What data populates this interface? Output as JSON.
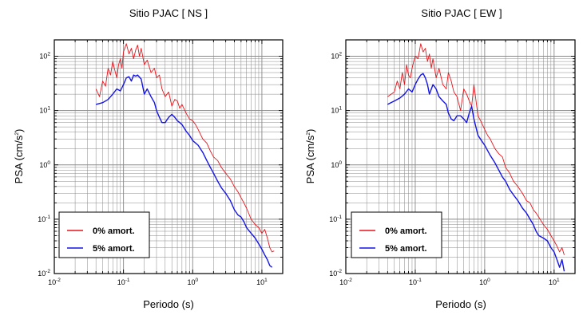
{
  "figure": {
    "background": "#ffffff",
    "grid_color": "#888888"
  },
  "chart_data": [
    {
      "type": "line",
      "title": "Sitio PJAC [ NS ]",
      "xlabel": "Periodo (s)",
      "ylabel_main": "PSA (cm/s",
      "ylabel_exp": "2",
      "ylabel_close": ")",
      "xscale": "log",
      "yscale": "log",
      "xlim": [
        0.01,
        20
      ],
      "ylim": [
        0.01,
        200
      ],
      "grid": true,
      "legend_position": "lower-left",
      "series": [
        {
          "name": "0% amort.",
          "color": "#e8151b",
          "x": [
            0.04,
            0.045,
            0.05,
            0.055,
            0.06,
            0.065,
            0.07,
            0.075,
            0.08,
            0.085,
            0.09,
            0.095,
            0.1,
            0.11,
            0.12,
            0.13,
            0.14,
            0.15,
            0.16,
            0.17,
            0.18,
            0.2,
            0.22,
            0.25,
            0.28,
            0.3,
            0.33,
            0.36,
            0.4,
            0.45,
            0.5,
            0.55,
            0.6,
            0.65,
            0.7,
            0.8,
            0.9,
            1.0,
            1.1,
            1.2,
            1.4,
            1.6,
            1.8,
            2.0,
            2.3,
            2.6,
            3.0,
            3.5,
            4.0,
            4.5,
            5.0,
            5.5,
            6.0,
            7.0,
            8.0,
            9.0,
            10,
            11,
            12,
            13,
            14,
            15
          ],
          "y": [
            25,
            18,
            35,
            28,
            60,
            45,
            80,
            55,
            40,
            70,
            90,
            60,
            120,
            170,
            110,
            140,
            90,
            130,
            160,
            100,
            140,
            70,
            85,
            50,
            60,
            40,
            45,
            25,
            18,
            22,
            12,
            16,
            15,
            11,
            13,
            9,
            7,
            6.5,
            5.5,
            4.5,
            3,
            2.5,
            1.8,
            1.4,
            1.2,
            0.9,
            0.7,
            0.55,
            0.4,
            0.32,
            0.25,
            0.2,
            0.16,
            0.1,
            0.08,
            0.07,
            0.055,
            0.065,
            0.045,
            0.03,
            0.025,
            0.026
          ]
        },
        {
          "name": "5% amort.",
          "color": "#1414e6",
          "x": [
            0.04,
            0.05,
            0.06,
            0.07,
            0.08,
            0.09,
            0.1,
            0.11,
            0.12,
            0.13,
            0.14,
            0.15,
            0.16,
            0.18,
            0.2,
            0.22,
            0.25,
            0.28,
            0.3,
            0.33,
            0.36,
            0.4,
            0.45,
            0.5,
            0.55,
            0.6,
            0.65,
            0.7,
            0.8,
            0.9,
            1.0,
            1.2,
            1.4,
            1.6,
            1.8,
            2.0,
            2.3,
            2.6,
            3.0,
            3.5,
            4.0,
            4.5,
            5.0,
            5.5,
            6.0,
            7.0,
            8.0,
            9.0,
            10,
            11,
            12,
            13,
            14
          ],
          "y": [
            13,
            14,
            16,
            20,
            25,
            23,
            30,
            40,
            42,
            35,
            45,
            43,
            45,
            38,
            20,
            25,
            18,
            14,
            10,
            7.5,
            6,
            6,
            7.5,
            8.5,
            7.5,
            6.5,
            6,
            5.5,
            4.2,
            3.5,
            2.8,
            2.3,
            1.7,
            1.2,
            0.9,
            0.7,
            0.5,
            0.38,
            0.3,
            0.22,
            0.15,
            0.12,
            0.11,
            0.09,
            0.07,
            0.055,
            0.045,
            0.035,
            0.028,
            0.022,
            0.018,
            0.014,
            0.013
          ]
        }
      ]
    },
    {
      "type": "line",
      "title": "Sitio PJAC [ EW ]",
      "xlabel": "Periodo (s)",
      "ylabel_main": "PSA (cm/s",
      "ylabel_exp": "2",
      "ylabel_close": ")",
      "xscale": "log",
      "yscale": "log",
      "xlim": [
        0.01,
        20
      ],
      "ylim": [
        0.01,
        200
      ],
      "grid": true,
      "legend_position": "lower-left",
      "series": [
        {
          "name": "0% amort.",
          "color": "#e8151b",
          "x": [
            0.04,
            0.045,
            0.05,
            0.055,
            0.06,
            0.065,
            0.07,
            0.075,
            0.08,
            0.085,
            0.09,
            0.095,
            0.1,
            0.11,
            0.12,
            0.13,
            0.14,
            0.15,
            0.16,
            0.17,
            0.18,
            0.2,
            0.22,
            0.25,
            0.28,
            0.3,
            0.33,
            0.36,
            0.4,
            0.45,
            0.5,
            0.55,
            0.6,
            0.65,
            0.7,
            0.8,
            0.9,
            1.0,
            1.1,
            1.2,
            1.4,
            1.6,
            1.8,
            2.0,
            2.3,
            2.6,
            3.0,
            3.5,
            4.0,
            4.5,
            5.0,
            5.5,
            6.0,
            7.0,
            8.0,
            9.0,
            10,
            11,
            12,
            13,
            14
          ],
          "y": [
            18,
            20,
            22,
            35,
            25,
            50,
            30,
            70,
            45,
            40,
            60,
            80,
            100,
            90,
            170,
            120,
            140,
            80,
            110,
            60,
            90,
            40,
            60,
            30,
            25,
            50,
            35,
            22,
            18,
            10,
            25,
            20,
            15,
            12,
            30,
            8,
            6,
            4.5,
            3.5,
            3,
            2,
            1.6,
            1.4,
            0.9,
            0.7,
            0.5,
            0.4,
            0.3,
            0.22,
            0.2,
            0.15,
            0.13,
            0.11,
            0.08,
            0.065,
            0.05,
            0.04,
            0.032,
            0.025,
            0.03,
            0.022
          ]
        },
        {
          "name": "5% amort.",
          "color": "#1414e6",
          "x": [
            0.04,
            0.05,
            0.06,
            0.07,
            0.08,
            0.09,
            0.1,
            0.11,
            0.12,
            0.13,
            0.14,
            0.15,
            0.16,
            0.18,
            0.2,
            0.22,
            0.25,
            0.28,
            0.3,
            0.33,
            0.36,
            0.4,
            0.45,
            0.5,
            0.55,
            0.6,
            0.65,
            0.7,
            0.8,
            0.9,
            1.0,
            1.2,
            1.4,
            1.6,
            1.8,
            2.0,
            2.3,
            2.6,
            3.0,
            3.5,
            4.0,
            4.5,
            5.0,
            5.5,
            6.0,
            7.0,
            8.0,
            9.0,
            10,
            11,
            12,
            13,
            14
          ],
          "y": [
            13,
            15,
            17,
            20,
            25,
            22,
            30,
            38,
            45,
            48,
            40,
            30,
            20,
            30,
            25,
            18,
            15,
            13,
            9,
            7,
            6.5,
            8,
            8,
            7,
            6,
            9,
            12,
            7,
            3.5,
            2.8,
            2.3,
            1.5,
            1.1,
            0.8,
            0.6,
            0.5,
            0.35,
            0.28,
            0.22,
            0.16,
            0.13,
            0.1,
            0.08,
            0.06,
            0.05,
            0.045,
            0.04,
            0.03,
            0.025,
            0.018,
            0.013,
            0.018,
            0.011
          ]
        }
      ]
    }
  ]
}
